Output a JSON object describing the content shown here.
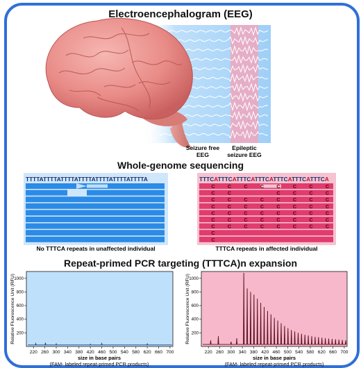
{
  "sections": {
    "eeg_title": "Electroencephalogram (EEG)",
    "wgs_title": "Whole-genome sequencing",
    "pcr_title": "Repeat-primed PCR targeting (TTTCA)n expansion"
  },
  "eeg": {
    "label_free_1": "Seizure free",
    "label_free_2": "EEG",
    "label_epi_1": "Epileptic",
    "label_epi_2": "seizure EEG"
  },
  "wgs": {
    "normal_seq": "TTTTATTTTATTTTATTTTATTTTATTTTATTTTA",
    "affected_seq_parts": [
      "TTTC",
      "A",
      "TTTC",
      "A",
      "TTTC",
      "A",
      "TTTC",
      "A",
      "TTTC",
      "A",
      "TTTC",
      "A",
      "TTTC",
      "A"
    ],
    "normal_caption": "No TTTCA repeats in unaffected individual",
    "affected_caption": "TTTCA repeats in affected individual",
    "c_letter": "C",
    "colors": {
      "normal": "#2b8be6",
      "affected": "#e03c6e",
      "highlight": "#c8102e"
    }
  },
  "pcr": {
    "ylabel": "Relative Fluorescence Unit (RFU)",
    "xlabel": "size in base pairs",
    "note": "(FAM- labeled repeat-primed PCR products)"
  },
  "chart_data": [
    {
      "type": "line",
      "panel": "unaffected",
      "ylabel": "Relative Fluorescence Unit (RFU)",
      "xlabel": "size in base pairs",
      "xlim": [
        195,
        710
      ],
      "ylim": [
        0,
        1100
      ],
      "x_ticks": [
        220,
        260,
        300,
        340,
        380,
        420,
        460,
        500,
        540,
        580,
        620,
        660,
        700
      ],
      "y_ticks": [
        200,
        400,
        600,
        800,
        1000
      ],
      "baseline": 22,
      "peaks": [
        {
          "x": 228,
          "y": 45
        },
        {
          "x": 262,
          "y": 55
        },
        {
          "x": 300,
          "y": 40
        },
        {
          "x": 420,
          "y": 35
        },
        {
          "x": 460,
          "y": 45
        },
        {
          "x": 620,
          "y": 40
        }
      ],
      "color": "#1f3f7a"
    },
    {
      "type": "line",
      "panel": "affected",
      "ylabel": "Relative Fluorescence Unit (RFU)",
      "xlabel": "size in base pairs",
      "xlim": [
        195,
        710
      ],
      "ylim": [
        0,
        1100
      ],
      "x_ticks": [
        220,
        260,
        300,
        340,
        380,
        420,
        460,
        500,
        540,
        580,
        620,
        660,
        700
      ],
      "y_ticks": [
        200,
        400,
        600,
        800,
        1000
      ],
      "baseline": 30,
      "peaks": [
        {
          "x": 228,
          "y": 90
        },
        {
          "x": 255,
          "y": 150
        },
        {
          "x": 300,
          "y": 70
        },
        {
          "x": 320,
          "y": 120
        },
        {
          "x": 345,
          "y": 1080
        },
        {
          "x": 357,
          "y": 850
        },
        {
          "x": 369,
          "y": 800
        },
        {
          "x": 381,
          "y": 760
        },
        {
          "x": 393,
          "y": 700
        },
        {
          "x": 405,
          "y": 640
        },
        {
          "x": 417,
          "y": 580
        },
        {
          "x": 429,
          "y": 520
        },
        {
          "x": 441,
          "y": 470
        },
        {
          "x": 453,
          "y": 420
        },
        {
          "x": 465,
          "y": 380
        },
        {
          "x": 477,
          "y": 340
        },
        {
          "x": 489,
          "y": 300
        },
        {
          "x": 501,
          "y": 270
        },
        {
          "x": 513,
          "y": 240
        },
        {
          "x": 525,
          "y": 220
        },
        {
          "x": 537,
          "y": 200
        },
        {
          "x": 549,
          "y": 185
        },
        {
          "x": 561,
          "y": 170
        },
        {
          "x": 573,
          "y": 160
        },
        {
          "x": 585,
          "y": 150
        },
        {
          "x": 597,
          "y": 140
        },
        {
          "x": 609,
          "y": 135
        },
        {
          "x": 621,
          "y": 128
        },
        {
          "x": 633,
          "y": 120
        },
        {
          "x": 645,
          "y": 115
        },
        {
          "x": 657,
          "y": 110
        },
        {
          "x": 669,
          "y": 105
        },
        {
          "x": 681,
          "y": 100
        },
        {
          "x": 693,
          "y": 95
        },
        {
          "x": 705,
          "y": 90
        }
      ],
      "color": "#5a1020"
    }
  ]
}
